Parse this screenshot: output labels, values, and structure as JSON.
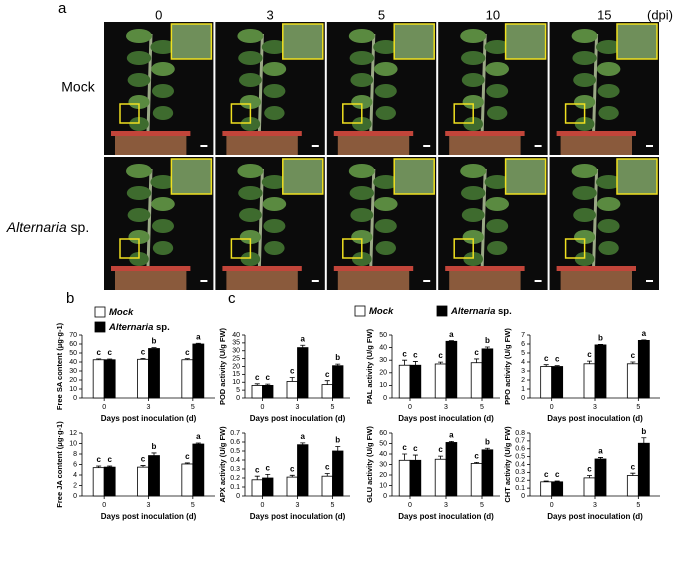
{
  "photo_panel": {
    "label": "a",
    "columns": [
      "0",
      "3",
      "5",
      "10",
      "15"
    ],
    "unit": "(dpi)",
    "rows": [
      "Mock",
      "Alternaria sp."
    ]
  },
  "panel_labels": [
    "b",
    "c"
  ],
  "chart_data": [
    {
      "type": "bar",
      "ylabel": "Free SA content (μg·g-1)",
      "xlabel": "Days post inoculation (d)",
      "categories": [
        "0",
        "3",
        "5"
      ],
      "ylim": [
        0,
        70
      ],
      "yticks": [
        0,
        10,
        20,
        30,
        40,
        50,
        60,
        70
      ],
      "series": [
        {
          "name": "Mock",
          "color": "#ffffff",
          "values": [
            42.5,
            43,
            42.5
          ],
          "errors": [
            1,
            1,
            1.2
          ],
          "letters": [
            "c",
            "c",
            "c"
          ]
        },
        {
          "name": "Alternaria sp.",
          "color": "#000000",
          "values": [
            42.5,
            55,
            60
          ],
          "errors": [
            0.8,
            1,
            0.8
          ],
          "letters": [
            "c",
            "b",
            "a"
          ]
        }
      ]
    },
    {
      "type": "bar",
      "ylabel": "Free JA content (μg·g-1)",
      "xlabel": "Days post inoculation (d)",
      "categories": [
        "0",
        "3",
        "5"
      ],
      "ylim": [
        0,
        12
      ],
      "yticks": [
        0,
        2,
        4,
        6,
        8,
        10,
        12
      ],
      "series": [
        {
          "color": "#ffffff",
          "values": [
            5.4,
            5.5,
            6.1
          ],
          "errors": [
            0.3,
            0.3,
            0.2
          ],
          "letters": [
            "c",
            "c",
            "c"
          ]
        },
        {
          "color": "#000000",
          "values": [
            5.5,
            7.7,
            9.9
          ],
          "errors": [
            0.2,
            0.5,
            0.2
          ],
          "letters": [
            "c",
            "b",
            "a"
          ]
        }
      ]
    },
    {
      "type": "bar",
      "ylabel": "POD activity (U/g FW)",
      "xlabel": "Days post inoculation (d)",
      "categories": [
        "0",
        "3",
        "5"
      ],
      "ylim": [
        0,
        40
      ],
      "yticks": [
        0,
        5,
        10,
        15,
        20,
        25,
        30,
        35,
        40
      ],
      "series": [
        {
          "color": "#ffffff",
          "values": [
            8,
            10.5,
            8.5
          ],
          "errors": [
            1,
            2.5,
            2.5
          ],
          "letters": [
            "c",
            "c",
            "c"
          ]
        },
        {
          "color": "#000000",
          "values": [
            8,
            32,
            20.5
          ],
          "errors": [
            0.8,
            1.5,
            1
          ],
          "letters": [
            "c",
            "a",
            "b"
          ]
        }
      ]
    },
    {
      "type": "bar",
      "ylabel": "PAL activity (U/g FW)",
      "xlabel": "Days post inoculation (d)",
      "categories": [
        "0",
        "3",
        "5"
      ],
      "ylim": [
        0,
        50
      ],
      "yticks": [
        0,
        10,
        20,
        30,
        40,
        50
      ],
      "series": [
        {
          "name": "Mock",
          "color": "#ffffff",
          "values": [
            26,
            27,
            28
          ],
          "errors": [
            4,
            1.5,
            3
          ],
          "letters": [
            "c",
            "c",
            "c"
          ]
        },
        {
          "name": "Alternaria sp.",
          "color": "#000000",
          "values": [
            26,
            45,
            39
          ],
          "errors": [
            3,
            0.5,
            1.5
          ],
          "letters": [
            "c",
            "a",
            "b"
          ]
        }
      ]
    },
    {
      "type": "bar",
      "ylabel": "PPO activity (U/g FW)",
      "xlabel": "Days post inoculation (d)",
      "categories": [
        "0",
        "3",
        "5"
      ],
      "ylim": [
        0,
        7
      ],
      "yticks": [
        0,
        1,
        2,
        3,
        4,
        5,
        6,
        7
      ],
      "series": [
        {
          "color": "#ffffff",
          "values": [
            3.5,
            3.8,
            3.8
          ],
          "errors": [
            0.2,
            0.3,
            0.2
          ],
          "letters": [
            "c",
            "c",
            "c"
          ]
        },
        {
          "color": "#000000",
          "values": [
            3.5,
            5.9,
            6.4
          ],
          "errors": [
            0.1,
            0.05,
            0.05
          ],
          "letters": [
            "c",
            "b",
            "a"
          ]
        }
      ]
    },
    {
      "type": "bar",
      "ylabel": "APX activity (U/g FW)",
      "xlabel": "Days post inoculation (d)",
      "categories": [
        "0",
        "3",
        "5"
      ],
      "ylim": [
        0,
        0.7
      ],
      "yticks": [
        0,
        0.1,
        0.2,
        0.3,
        0.4,
        0.5,
        0.6,
        0.7
      ],
      "series": [
        {
          "color": "#ffffff",
          "values": [
            0.18,
            0.21,
            0.22
          ],
          "errors": [
            0.04,
            0.02,
            0.03
          ],
          "letters": [
            "c",
            "c",
            "c"
          ]
        },
        {
          "color": "#000000",
          "values": [
            0.2,
            0.57,
            0.5
          ],
          "errors": [
            0.04,
            0.02,
            0.05
          ],
          "letters": [
            "c",
            "a",
            "b"
          ]
        }
      ]
    },
    {
      "type": "bar",
      "ylabel": "GLU activity (U/g FW)",
      "xlabel": "Days post inoculation (d)",
      "categories": [
        "0",
        "3",
        "5"
      ],
      "ylim": [
        0,
        60
      ],
      "yticks": [
        0,
        10,
        20,
        30,
        40,
        50,
        60
      ],
      "series": [
        {
          "color": "#ffffff",
          "values": [
            34,
            35,
            31
          ],
          "errors": [
            6,
            3,
            1
          ],
          "letters": [
            "c",
            "c",
            "c"
          ]
        },
        {
          "color": "#000000",
          "values": [
            34,
            51,
            44
          ],
          "errors": [
            5,
            1,
            1.5
          ],
          "letters": [
            "c",
            "a",
            "b"
          ]
        }
      ]
    },
    {
      "type": "bar",
      "ylabel": "CHT activity (U/g FW)",
      "xlabel": "Days post inoculation (d)",
      "categories": [
        "0",
        "3",
        "5"
      ],
      "ylim": [
        0,
        0.8
      ],
      "yticks": [
        0,
        0.1,
        0.2,
        0.3,
        0.4,
        0.5,
        0.6,
        0.7,
        0.8
      ],
      "series": [
        {
          "color": "#ffffff",
          "values": [
            0.18,
            0.23,
            0.26
          ],
          "errors": [
            0.01,
            0.03,
            0.03
          ],
          "letters": [
            "c",
            "c",
            "c"
          ]
        },
        {
          "color": "#000000",
          "values": [
            0.18,
            0.47,
            0.67
          ],
          "errors": [
            0.01,
            0.02,
            0.07
          ],
          "letters": [
            "c",
            "a",
            "b"
          ]
        }
      ]
    }
  ]
}
